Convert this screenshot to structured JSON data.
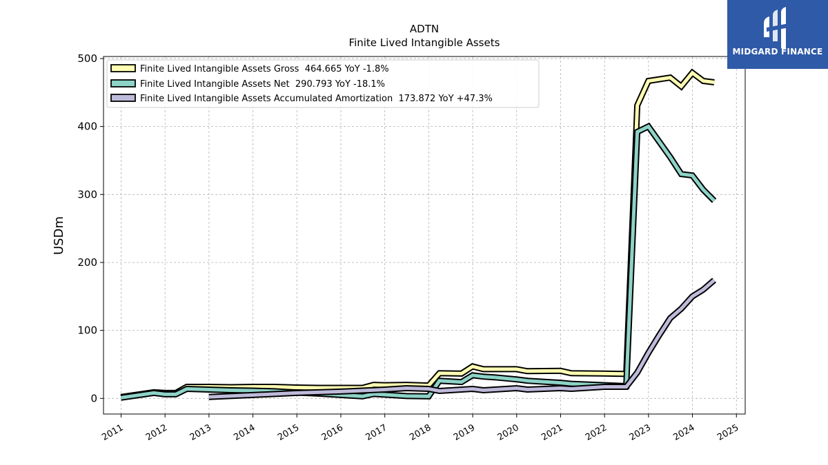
{
  "chart_data": {
    "type": "line",
    "title": "ADTN",
    "subtitle": "Finite Lived Intangible Assets",
    "ylabel": "USDm",
    "xlabel": "",
    "ylim": [
      -23,
      503
    ],
    "xlim": [
      2010.6,
      2025.2
    ],
    "yticks": [
      0,
      100,
      200,
      300,
      400,
      500
    ],
    "xticks": [
      "2011",
      "2012",
      "2013",
      "2014",
      "2015",
      "2016",
      "2017",
      "2018",
      "2019",
      "2020",
      "2021",
      "2022",
      "2023",
      "2024",
      "2025"
    ],
    "grid": true,
    "legend_position": "top-left",
    "series": [
      {
        "name": "Finite Lived Intangible Assets Gross  464.665 YoY -1.8%",
        "color": "#ffffb3",
        "points": [
          [
            "2010-12-31",
            2
          ],
          [
            "2011-09-30",
            9
          ],
          [
            "2011-12-31",
            8
          ],
          [
            "2012-03-31",
            8
          ],
          [
            "2012-06-30",
            17
          ],
          [
            "2012-12-31",
            17
          ],
          [
            "2013-06-30",
            16.5
          ],
          [
            "2013-12-31",
            17
          ],
          [
            "2014-06-30",
            17
          ],
          [
            "2014-12-31",
            16
          ],
          [
            "2015-06-30",
            15.5
          ],
          [
            "2015-12-31",
            15.5
          ],
          [
            "2016-06-30",
            15.5
          ],
          [
            "2016-09-30",
            20
          ],
          [
            "2016-12-31",
            19.5
          ],
          [
            "2017-06-30",
            20
          ],
          [
            "2017-12-31",
            19
          ],
          [
            "2018-03-31",
            37
          ],
          [
            "2018-09-30",
            36.5
          ],
          [
            "2018-12-31",
            47
          ],
          [
            "2019-03-31",
            43
          ],
          [
            "2019-06-30",
            43
          ],
          [
            "2019-12-31",
            43
          ],
          [
            "2020-03-31",
            40
          ],
          [
            "2020-12-31",
            40.5
          ],
          [
            "2021-03-31",
            37
          ],
          [
            "2021-12-31",
            36.5
          ],
          [
            "2022-06-30",
            36
          ],
          [
            "2022-09-30",
            431
          ],
          [
            "2022-12-31",
            467
          ],
          [
            "2023-06-30",
            472
          ],
          [
            "2023-09-30",
            459
          ],
          [
            "2023-12-31",
            479
          ],
          [
            "2024-03-31",
            467
          ],
          [
            "2024-06-30",
            465
          ]
        ]
      },
      {
        "name": "Finite Lived Intangible Assets Net  290.793 YoY -18.1%",
        "color": "#8dd3c7",
        "points": [
          [
            "2010-12-31",
            1
          ],
          [
            "2011-09-30",
            8
          ],
          [
            "2011-12-31",
            6
          ],
          [
            "2012-03-31",
            6
          ],
          [
            "2012-06-30",
            14
          ],
          [
            "2012-12-31",
            13
          ],
          [
            "2013-06-30",
            12
          ],
          [
            "2013-12-31",
            11.5
          ],
          [
            "2014-06-30",
            10.5
          ],
          [
            "2014-12-31",
            8.5
          ],
          [
            "2015-06-30",
            7
          ],
          [
            "2015-12-31",
            5
          ],
          [
            "2016-06-30",
            3
          ],
          [
            "2016-09-30",
            6.5
          ],
          [
            "2016-12-31",
            5.5
          ],
          [
            "2017-06-30",
            3.5
          ],
          [
            "2017-12-31",
            3
          ],
          [
            "2018-03-31",
            26
          ],
          [
            "2018-09-30",
            24
          ],
          [
            "2018-12-31",
            34
          ],
          [
            "2019-03-31",
            32
          ],
          [
            "2019-06-30",
            31
          ],
          [
            "2019-12-31",
            28
          ],
          [
            "2020-03-31",
            26
          ],
          [
            "2020-12-31",
            23
          ],
          [
            "2021-03-31",
            21.5
          ],
          [
            "2021-12-31",
            19.5
          ],
          [
            "2022-06-30",
            18
          ],
          [
            "2022-09-30",
            392
          ],
          [
            "2022-12-31",
            400
          ],
          [
            "2023-06-30",
            355
          ],
          [
            "2023-09-30",
            330
          ],
          [
            "2023-12-31",
            328
          ],
          [
            "2024-03-31",
            307
          ],
          [
            "2024-06-30",
            290.793
          ]
        ]
      },
      {
        "name": "Finite Lived Intangible Assets Accumulated Amortization  173.872 YoY +47.3%",
        "color": "#bebada",
        "points": [
          [
            "2012-12-31",
            2
          ],
          [
            "2013-12-31",
            5
          ],
          [
            "2014-12-31",
            8
          ],
          [
            "2015-12-31",
            10
          ],
          [
            "2016-12-31",
            13
          ],
          [
            "2017-06-30",
            15
          ],
          [
            "2017-12-31",
            14
          ],
          [
            "2018-03-31",
            11
          ],
          [
            "2018-12-31",
            14
          ],
          [
            "2019-03-31",
            12
          ],
          [
            "2019-12-31",
            15
          ],
          [
            "2020-03-31",
            13
          ],
          [
            "2020-12-31",
            15
          ],
          [
            "2021-03-31",
            14
          ],
          [
            "2021-12-31",
            17
          ],
          [
            "2022-06-30",
            17
          ],
          [
            "2022-09-30",
            38
          ],
          [
            "2022-12-31",
            67
          ],
          [
            "2023-03-31",
            93
          ],
          [
            "2023-06-30",
            118
          ],
          [
            "2023-09-30",
            132
          ],
          [
            "2023-12-31",
            150
          ],
          [
            "2024-03-31",
            160
          ],
          [
            "2024-06-30",
            173.872
          ]
        ]
      }
    ]
  },
  "watermark": {
    "brand_text": "MIDGARD FINANCE",
    "icon": "midgard-logo-icon",
    "background_color": "#2f5aa8"
  }
}
